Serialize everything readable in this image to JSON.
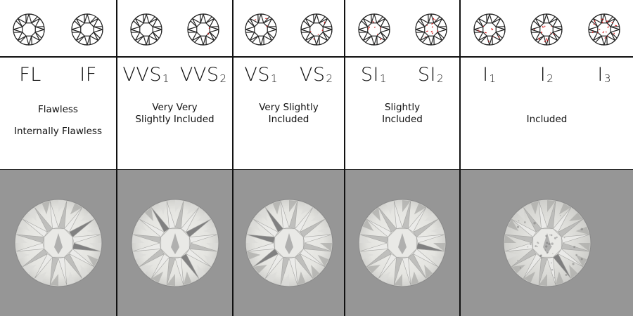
{
  "groups": [
    {
      "grades": [
        {
          "base": "FL",
          "sub": ""
        },
        {
          "base": "IF",
          "sub": ""
        }
      ],
      "description_lines": [
        "Flawless"
      ],
      "description_lines_2": [
        "Internally Flawless"
      ],
      "inclusions": [
        0,
        0
      ]
    },
    {
      "grades": [
        {
          "base": "VVS",
          "sub": "1"
        },
        {
          "base": "VVS",
          "sub": "2"
        }
      ],
      "description_lines": [
        "Very Very",
        "Slightly Included"
      ],
      "description_lines_2": [],
      "inclusions": [
        0,
        2
      ]
    },
    {
      "grades": [
        {
          "base": "VS",
          "sub": "1"
        },
        {
          "base": "VS",
          "sub": "2"
        }
      ],
      "description_lines": [
        "Very Slightly",
        "Included"
      ],
      "description_lines_2": [],
      "inclusions": [
        3,
        5
      ]
    },
    {
      "grades": [
        {
          "base": "SI",
          "sub": "1"
        },
        {
          "base": "SI",
          "sub": "2"
        }
      ],
      "description_lines": [
        "Slightly",
        "Included"
      ],
      "description_lines_2": [],
      "inclusions": [
        7,
        10
      ]
    },
    {
      "grades": [
        {
          "base": "I",
          "sub": "1"
        },
        {
          "base": "I",
          "sub": "2"
        },
        {
          "base": "I",
          "sub": "3"
        }
      ],
      "description_lines": [
        "Included"
      ],
      "description_lines_2": [],
      "inclusions": [
        9,
        13,
        18
      ]
    }
  ],
  "colors": {
    "line": "#222222",
    "inclusion": "#d42020",
    "bottom_bg": "#969696",
    "stone_light": "#f1f1ee",
    "stone_mid": "#c9c9c6",
    "stone_dark": "#6f6f70"
  }
}
